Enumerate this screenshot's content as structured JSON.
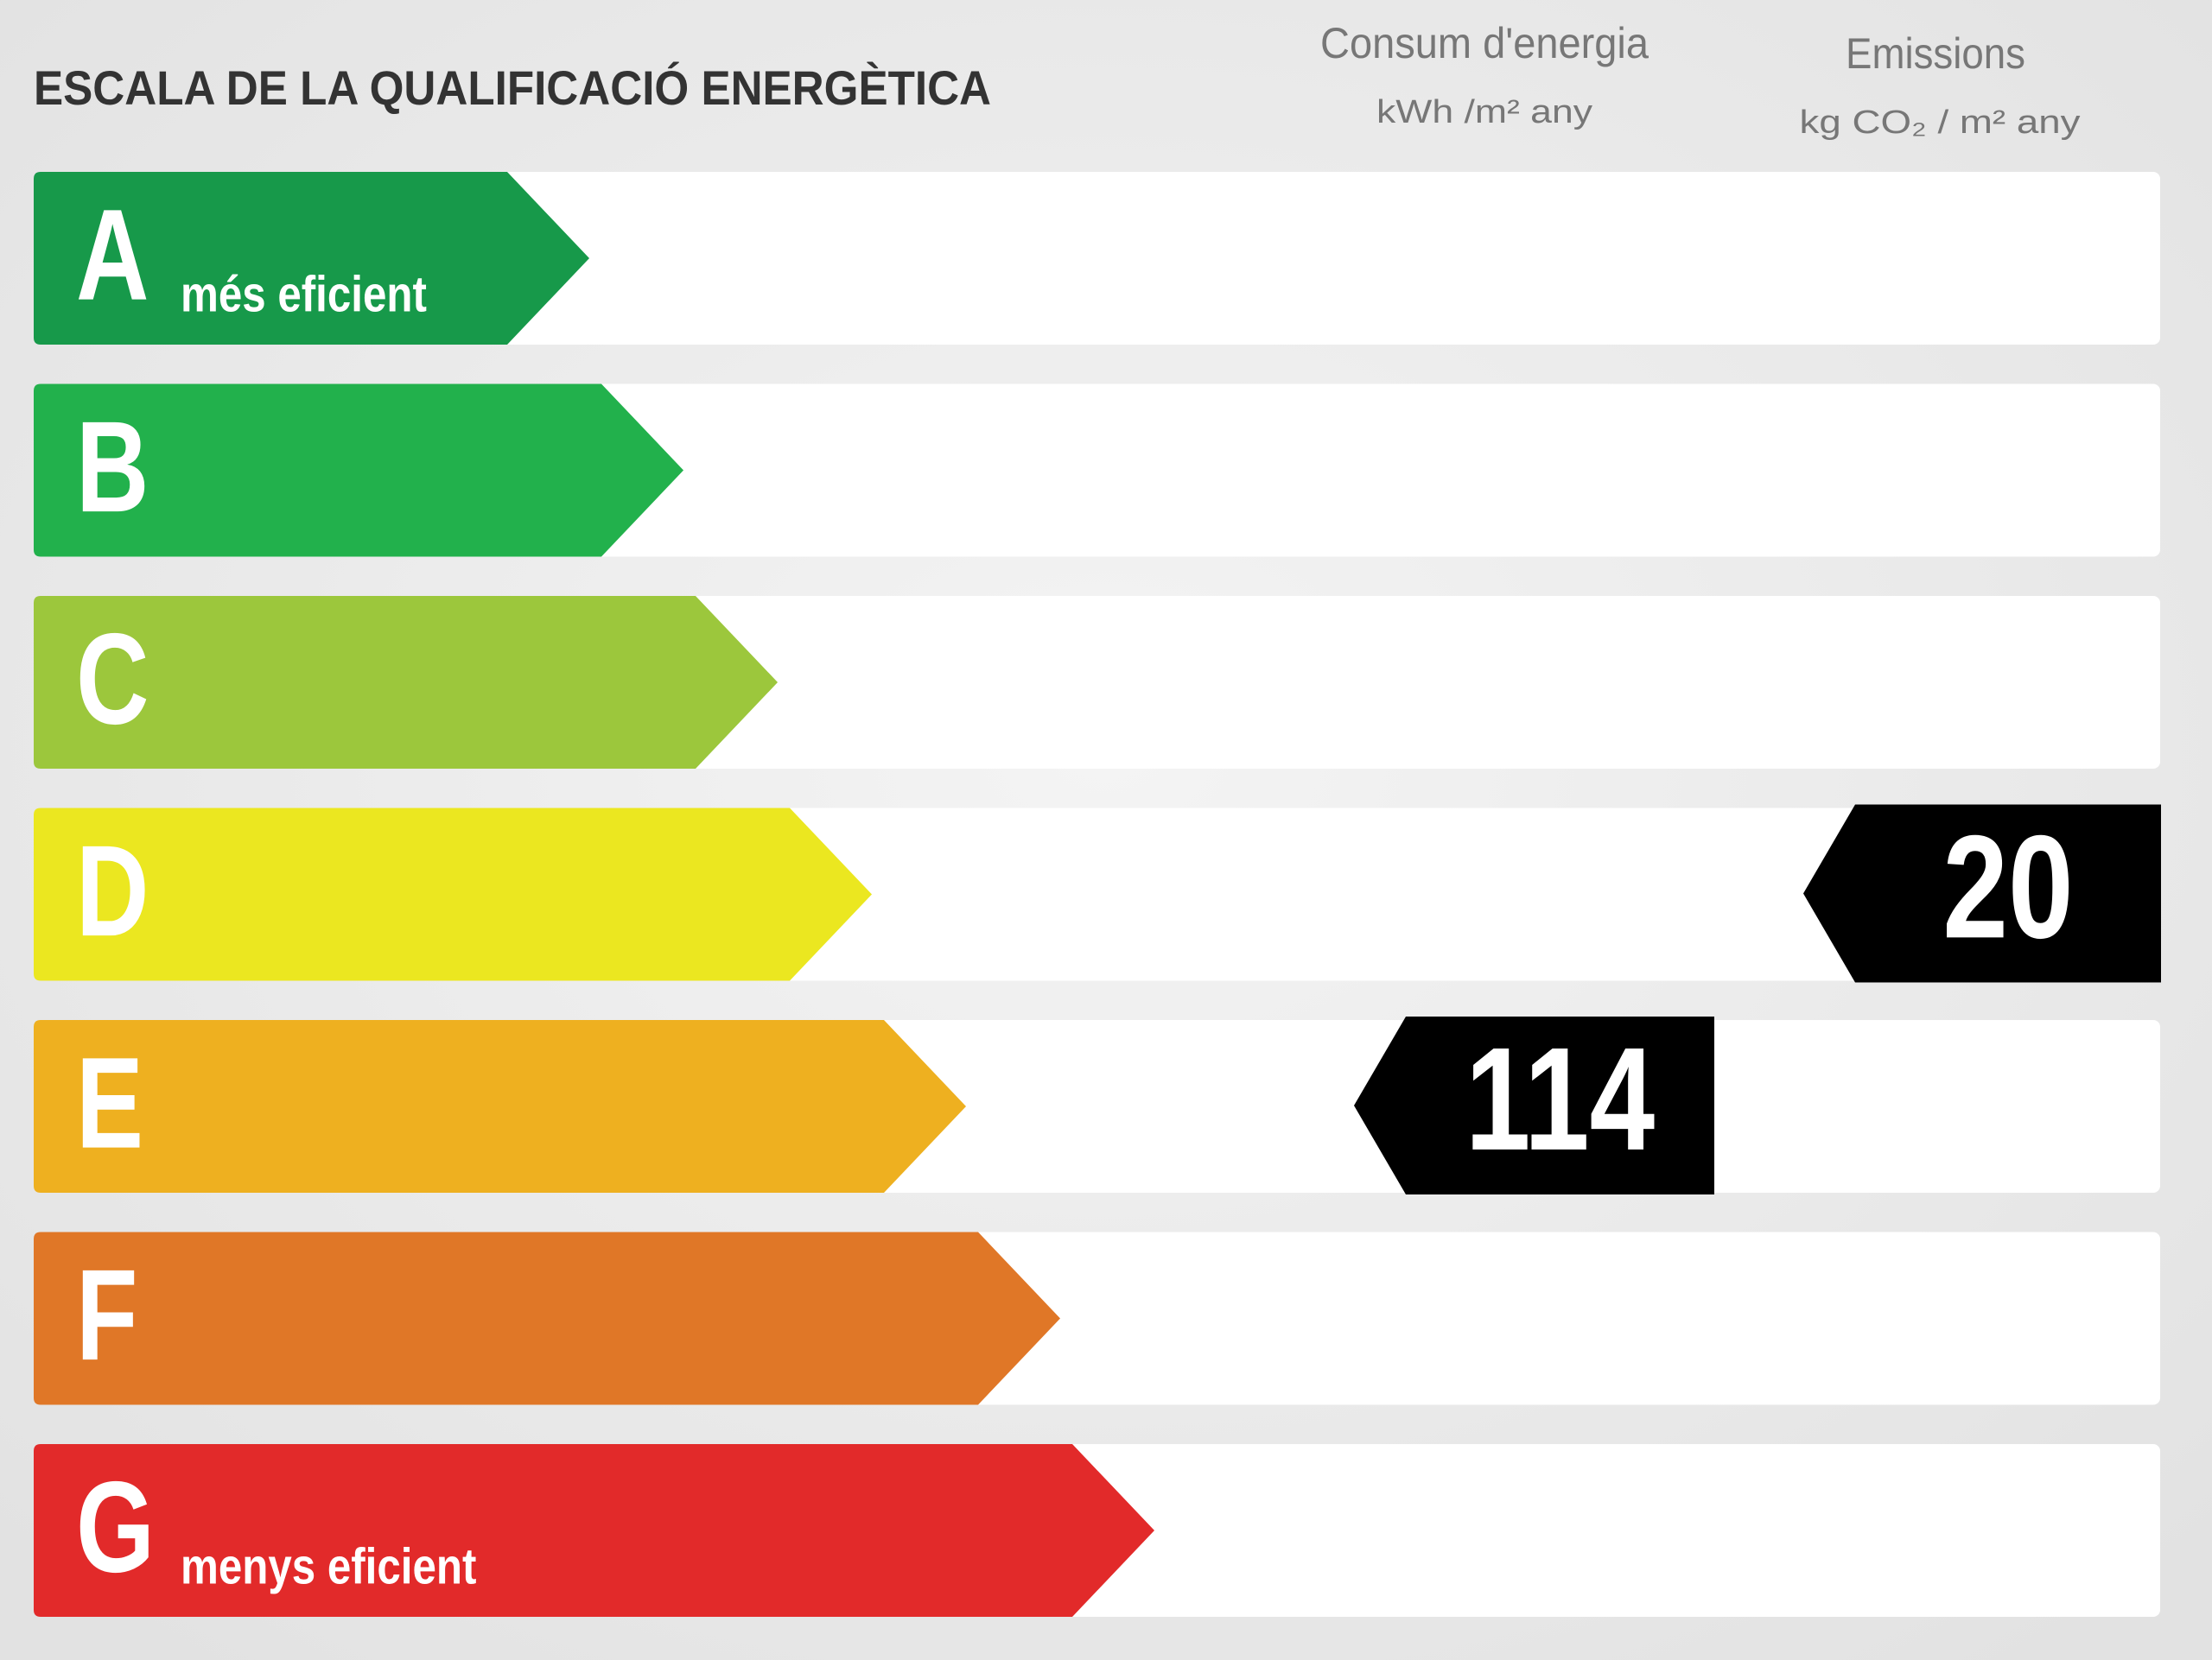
{
  "header": {
    "title": "ESCALA DE LA QUALIFICACIÓ ENERGÈTICA",
    "columns": [
      {
        "title": "Consum d'energia",
        "unit": "kWh /m² any"
      },
      {
        "title": "Emissions",
        "unit": "kg CO₂ / m² any"
      }
    ]
  },
  "rows": [
    {
      "letter": "A",
      "label": "més eficient",
      "color": "#17994a"
    },
    {
      "letter": "B",
      "color": "#22b14c"
    },
    {
      "letter": "C",
      "color": "#9cc73c"
    },
    {
      "letter": "D",
      "color": "#ebe720",
      "emissions": 20
    },
    {
      "letter": "E",
      "color": "#eeb020",
      "energy": 114
    },
    {
      "letter": "F",
      "color": "#e07727"
    },
    {
      "letter": "G",
      "label": "menys eficient",
      "color": "#e22a2a"
    }
  ]
}
